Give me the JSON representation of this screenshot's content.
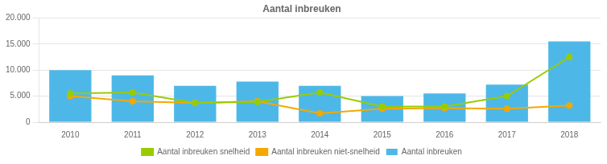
{
  "chart_data": {
    "type": "bar",
    "title": "Aantal inbreuken",
    "categories": [
      "2010",
      "2011",
      "2012",
      "2013",
      "2014",
      "2015",
      "2016",
      "2017",
      "2018"
    ],
    "series": [
      {
        "name": "Aantal inbreuken",
        "type": "bar",
        "color": "#4db8e8",
        "values": [
          10000,
          9000,
          7000,
          7800,
          7000,
          5000,
          5500,
          7200,
          15500
        ]
      },
      {
        "name": "Aantal inbreuken snelheid",
        "type": "line",
        "color": "#99cc00",
        "marker": "circle",
        "values": [
          5500,
          5700,
          3700,
          3900,
          5700,
          3000,
          3000,
          5000,
          12500
        ]
      },
      {
        "name": "Aantal inbreuken niet-snelheid",
        "type": "line",
        "color": "#f5a800",
        "marker": "circle",
        "values": [
          5000,
          4000,
          3700,
          4000,
          1700,
          2600,
          2700,
          2600,
          3200
        ]
      }
    ],
    "ylim": [
      0,
      20000
    ],
    "yticks": [
      0,
      {
        "value": 5000,
        "label": "5.000"
      },
      {
        "value": 10000,
        "label": "10.000"
      },
      {
        "value": 15000,
        "label": "15.000"
      },
      {
        "value": 20000,
        "label": "20.000"
      }
    ],
    "grid": "y",
    "legend": "bottom"
  }
}
